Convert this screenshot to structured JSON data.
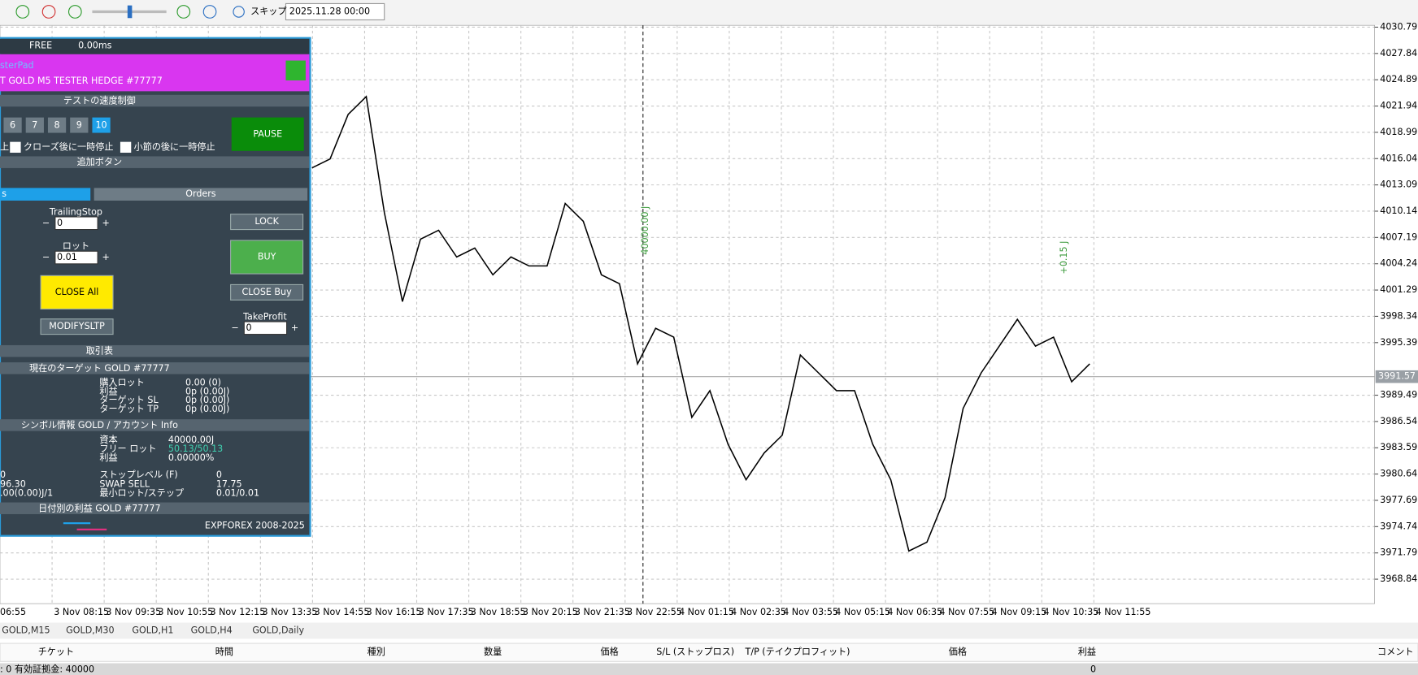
{
  "toolbar": {
    "skip": "スキップ",
    "date": "2025.11.28 00:00"
  },
  "panel": {
    "status": "FREE",
    "latency": "0.00ms",
    "title": "sterPad",
    "subtitle": "T GOLD M5 TESTER HEDGE  #77777",
    "speed_header": "テストの速度制御",
    "speed_buttons": [
      "6",
      "7",
      "8",
      "9",
      "10"
    ],
    "pause": "PAUSE",
    "chk_left": "上",
    "chk1": "クローズ後に一時停止",
    "chk2": "小節の後に一時停止",
    "extra_header": "追加ボタン",
    "tab_left": "s",
    "tab_orders": "Orders",
    "minus": "−",
    "plus": "+",
    "trailing_label": "TrailingStop",
    "trailing_value": "0",
    "lock": "LOCK",
    "lot_label": "ロット",
    "lot_value": "0.01",
    "buy": "BUY",
    "close_all": "CLOSE All",
    "close_buy": "CLOSE Buy",
    "modify": "MODIFYSLTP",
    "tp_label": "TakeProfit",
    "tp_value": "0",
    "trades_header": "取引表",
    "target_header": "現在のターゲット GOLD #77777",
    "target_rows": [
      [
        "購入ロット",
        "0.00 (0)"
      ],
      [
        "利益",
        "0p (0.00J)"
      ],
      [
        "ターゲット SL",
        "0p (0.00J)"
      ],
      [
        "ターゲット TP",
        "0p (0.00J)"
      ]
    ],
    "info_header": "シンボル情報 GOLD / アカウント Info",
    "info_rows": [
      [
        "資本",
        "40000.00J"
      ],
      [
        "フリー ロット",
        "50.13/50.13"
      ],
      [
        "利益",
        "0.00000%"
      ],
      [
        "ストップレベル (F)",
        "0"
      ],
      [
        "SWAP SELL",
        "17.75"
      ],
      [
        "最小ロット/ステップ",
        "0.01/0.01"
      ]
    ],
    "info_left": [
      "0",
      "96.30",
      ".00(0.00)J/1"
    ],
    "daily_header": "日付別の利益 GOLD #77777",
    "footer": "EXPFOREX 2008-2025"
  },
  "chart_data": {
    "type": "line",
    "color": "#000000",
    "grid": true,
    "ylim": [
      3966.1,
      4031.0
    ],
    "yticks": [
      4030.79,
      4027.84,
      4024.89,
      4021.94,
      4018.99,
      4016.04,
      4013.09,
      4010.14,
      4007.19,
      4004.24,
      4001.29,
      3998.34,
      3995.39,
      3989.49,
      3986.54,
      3983.59,
      3980.64,
      3977.69,
      3974.74,
      3971.79,
      3968.84
    ],
    "current_price": 3991.57,
    "values": [
      4015,
      4016,
      4021,
      4023,
      4010,
      4000,
      4007,
      4008,
      4005,
      4006,
      4003,
      4005,
      4004,
      4004,
      4011,
      4009,
      4003,
      4002,
      3993,
      3997,
      3996,
      3987,
      3990,
      3984,
      3980,
      3983,
      3985,
      3994,
      3992,
      3990,
      3990,
      3984,
      3980,
      3972,
      3973,
      3978,
      3988,
      3992,
      3995,
      3998,
      3995,
      3996,
      3991,
      3993
    ],
    "xtick_labels": [
      "06:55",
      "3 Nov 08:15",
      "3 Nov 09:35",
      "3 Nov 10:55",
      "3 Nov 12:15",
      "3 Nov 13:35",
      "3 Nov 14:55",
      "3 Nov 16:15",
      "3 Nov 17:35",
      "3 Nov 18:55",
      "3 Nov 20:15",
      "3 Nov 21:35",
      "3 Nov 22:55",
      "4 Nov 01:15",
      "4 Nov 02:35",
      "4 Nov 03:55",
      "4 Nov 05:15",
      "4 Nov 06:35",
      "4 Nov 07:55",
      "4 Nov 09:15",
      "4 Nov 10:35",
      "4 Nov 11:55"
    ],
    "annotations": [
      "40000.00 J",
      "+0.15 J"
    ]
  },
  "tabs": [
    "GOLD,M15",
    "GOLD,M30",
    "GOLD,H1",
    "GOLD,H4",
    "GOLD,Daily"
  ],
  "table": {
    "headers": [
      "チケット",
      "時間",
      "種別",
      "数量",
      "価格",
      "S/L (ストップロス)",
      "T/P (テイクプロフィット)",
      "価格",
      "利益",
      "コメント"
    ]
  },
  "status": {
    "left": ": 0  有効証拠金: 40000",
    "profit": "0"
  }
}
